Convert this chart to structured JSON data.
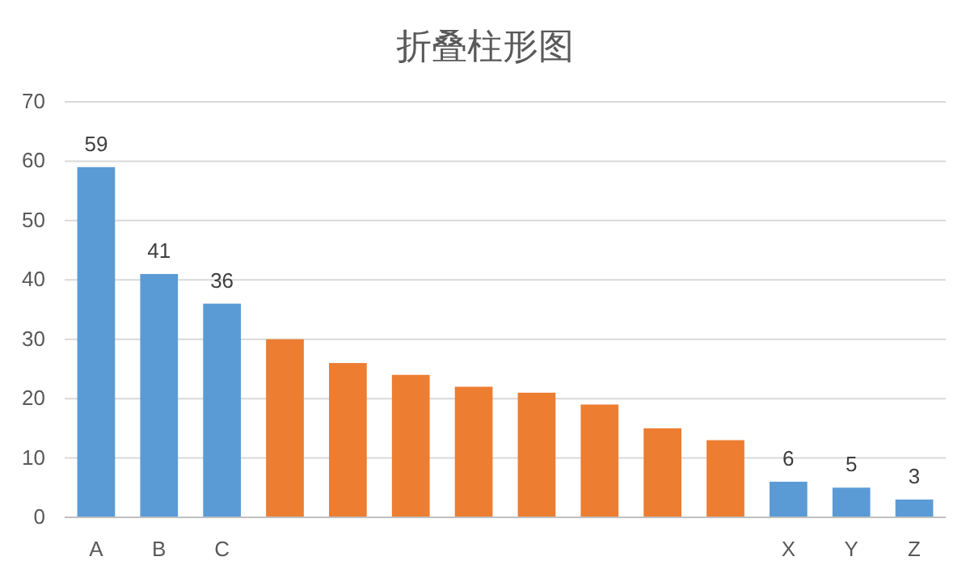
{
  "chart_data": {
    "type": "bar",
    "title": "折叠柱形图",
    "categories": [
      "A",
      "B",
      "C",
      null,
      null,
      null,
      null,
      null,
      null,
      null,
      null,
      "X",
      "Y",
      "Z"
    ],
    "values": [
      59,
      41,
      36,
      30,
      26,
      24,
      22,
      21,
      19,
      15,
      13,
      6,
      5,
      3
    ],
    "colors": [
      "#5b9bd5",
      "#5b9bd5",
      "#5b9bd5",
      "#ed7d31",
      "#ed7d31",
      "#ed7d31",
      "#ed7d31",
      "#ed7d31",
      "#ed7d31",
      "#ed7d31",
      "#ed7d31",
      "#5b9bd5",
      "#5b9bd5",
      "#5b9bd5"
    ],
    "value_labels": [
      "59",
      "41",
      "36",
      null,
      null,
      null,
      null,
      null,
      null,
      null,
      null,
      "6",
      "5",
      "3"
    ],
    "ylim": [
      0,
      70
    ],
    "yticks": [
      0,
      10,
      20,
      30,
      40,
      50,
      60,
      70
    ],
    "grid": "y"
  }
}
